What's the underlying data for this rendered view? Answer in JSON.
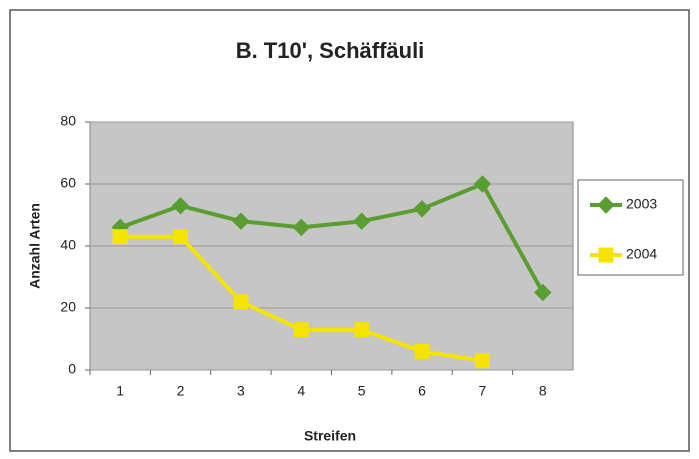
{
  "chart_data": {
    "type": "line",
    "title": "B. T10', Schäffäuli",
    "x_label": "Streifen",
    "y_label": "Anzahl Arten",
    "categories": [
      "1",
      "2",
      "3",
      "4",
      "5",
      "6",
      "7",
      "8"
    ],
    "series": [
      {
        "name": "2003",
        "color": "#5a9e32",
        "marker": "diamond",
        "values": [
          46,
          53,
          48,
          46,
          48,
          52,
          60,
          25
        ]
      },
      {
        "name": "2004",
        "color": "#f5e400",
        "marker": "square",
        "values": [
          43,
          43,
          22,
          13,
          13,
          6,
          3,
          null
        ]
      }
    ],
    "ylim": [
      0,
      80
    ],
    "yticks": [
      0,
      20,
      40,
      60,
      80
    ],
    "grid": true,
    "legend": "right"
  }
}
